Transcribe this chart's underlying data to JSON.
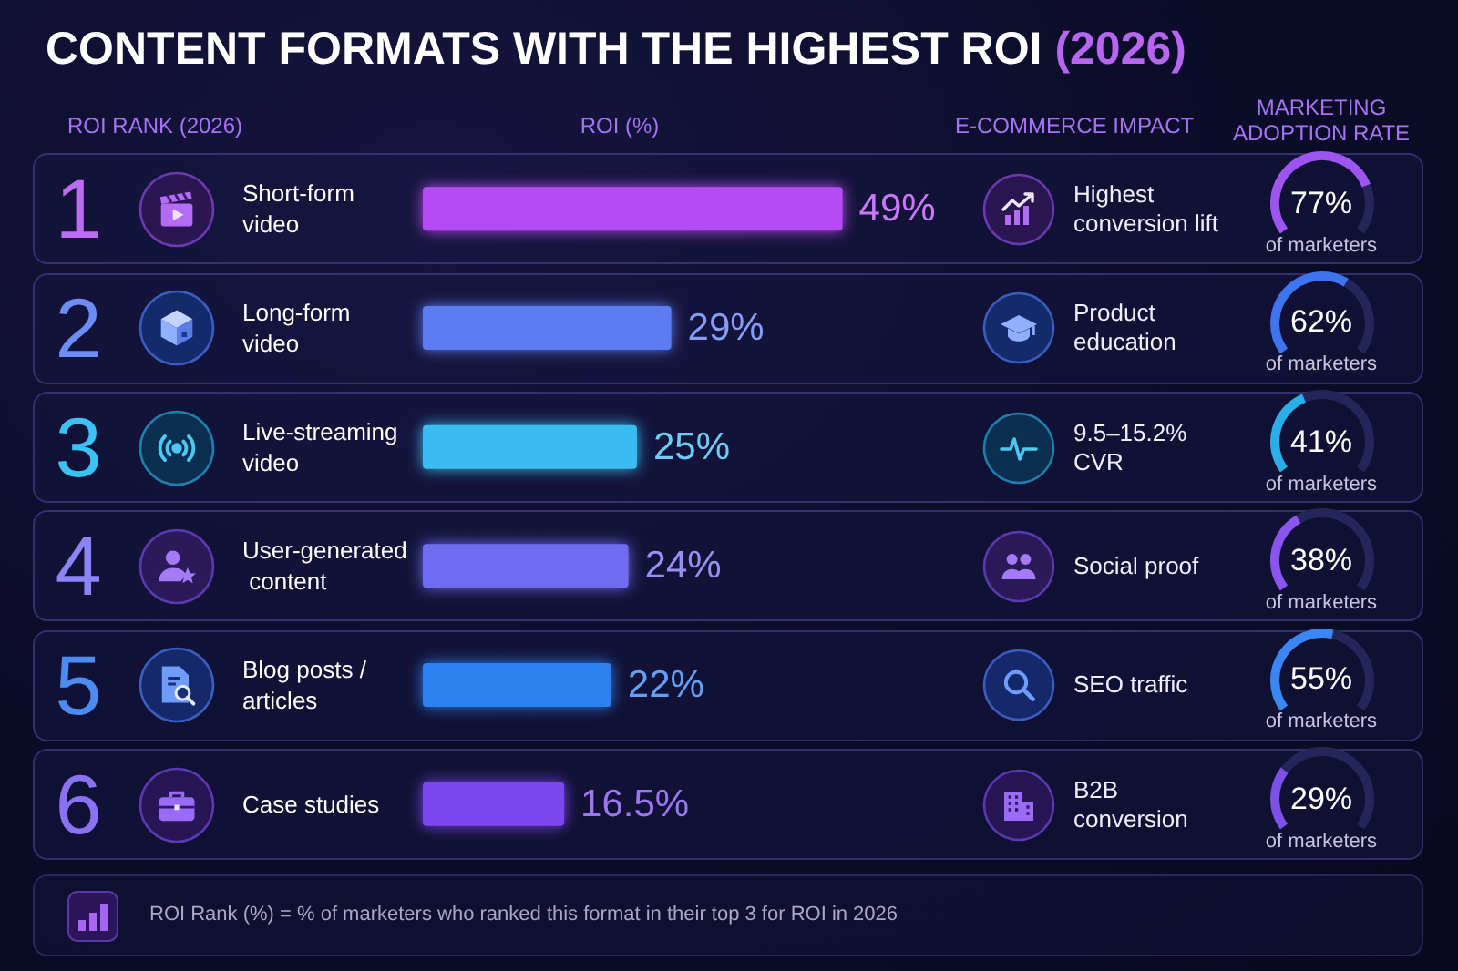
{
  "chart_data": [
    {
      "type": "bar",
      "orientation": "horizontal",
      "title": "CONTENT FORMATS WITH THE HIGHEST ROI (2026)",
      "xlabel": "ROI (%)",
      "ylabel": "ROI RANK (2026)",
      "categories": [
        "Short-form video",
        "Long-form video",
        "Live-streaming video",
        "User-generated content",
        "Blog posts / articles",
        "Case studies"
      ],
      "y2_categories": [
        "1",
        "2",
        "3",
        "4",
        "5",
        "6"
      ],
      "values": [
        49,
        29,
        25,
        24,
        22,
        16.5
      ],
      "colors": [
        "#b54cf2",
        "#5b7cf2",
        "#3bbcf0",
        "#6f6cf0",
        "#2f7ff0",
        "#7b47ef"
      ],
      "value_labels": [
        "49%",
        "29%",
        "25%",
        "24%",
        "22%",
        "16.5%"
      ],
      "annotations": [
        "ROI Rank (%) = % of marketers who ranked this format in their top 3 for ROI in 2026"
      ]
    },
    {
      "type": "other",
      "title": "E-COMMERCE IMPACT",
      "annotations": [
        "Highest conversion lift",
        "Product education",
        "9.5–15.2% CVR",
        "Social proof",
        "SEO traffic",
        "B2B conversion"
      ]
    },
    {
      "type": "other",
      "title": "MARKETING ADOPTION RATE",
      "values": [
        77,
        62,
        41,
        38,
        55,
        29
      ],
      "colors": [
        "#9d54f0",
        "#3d74f0",
        "#29aee8",
        "#8a55ee",
        "#3a86f2",
        "#7c52e6"
      ],
      "value_labels": [
        "77%",
        "62%",
        "41%",
        "38%",
        "55%",
        "29%"
      ],
      "annotations": [
        "of marketers",
        "of marketers",
        "of marketers",
        "of marketers",
        "of marketers",
        "of marketers"
      ]
    }
  ]
}
